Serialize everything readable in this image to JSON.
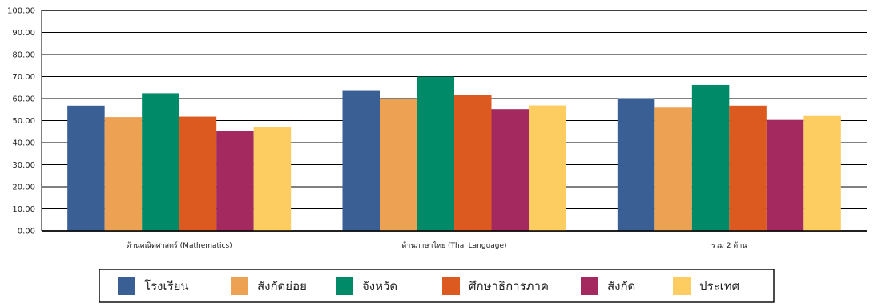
{
  "chart_data": {
    "type": "bar",
    "title": "",
    "xlabel": "",
    "ylabel": "",
    "ylim": [
      0,
      100
    ],
    "yticks": [
      "0.00",
      "10.00",
      "20.00",
      "30.00",
      "40.00",
      "50.00",
      "60.00",
      "70.00",
      "80.00",
      "90.00",
      "100.00"
    ],
    "grid": true,
    "legend_position": "bottom",
    "categories": [
      "ด้านคณิตศาสตร์ (Mathematics)",
      "ด้านภาษาไทย (Thai Language)",
      "รวม 2 ด้าน"
    ],
    "series": [
      {
        "name": "โรงเรียน",
        "color": "#3a5f95",
        "values": [
          56.8,
          63.8,
          60.2
        ]
      },
      {
        "name": "สังกัดย่อย",
        "color": "#eda152",
        "values": [
          51.6,
          60.0,
          55.9
        ]
      },
      {
        "name": "จังหวัด",
        "color": "#008a68",
        "values": [
          62.4,
          70.0,
          66.2
        ]
      },
      {
        "name": "ศึกษาธิการภาค",
        "color": "#dc5a20",
        "values": [
          51.8,
          61.8,
          56.8
        ]
      },
      {
        "name": "สังกัด",
        "color": "#a3295f",
        "values": [
          45.4,
          55.2,
          50.3
        ]
      },
      {
        "name": "ประเทศ",
        "color": "#fdcd62",
        "values": [
          47.2,
          56.9,
          52.1
        ]
      }
    ]
  }
}
